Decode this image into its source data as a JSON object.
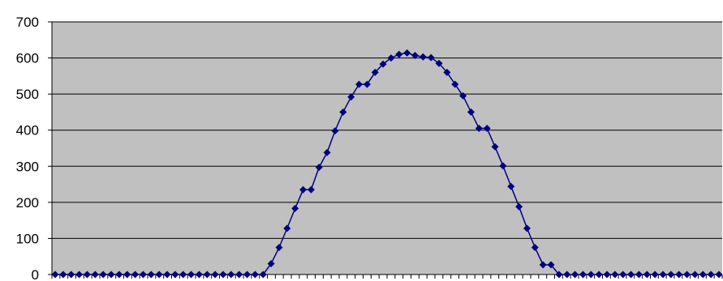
{
  "chart_data": {
    "type": "line",
    "title": "",
    "xlabel": "",
    "ylabel": "",
    "ylim": [
      0,
      700
    ],
    "yticks": [
      "0",
      "100",
      "200",
      "300",
      "400",
      "500",
      "600",
      "700"
    ],
    "grid": true,
    "legend": "none",
    "colors": {
      "plot_bg": "#c0c0c0",
      "series": "#000080",
      "grid": "#000000"
    },
    "series": [
      {
        "marker": "diamond",
        "values": [
          0,
          0,
          0,
          0,
          0,
          0,
          0,
          0,
          0,
          0,
          0,
          0,
          0,
          0,
          0,
          0,
          0,
          0,
          0,
          0,
          0,
          0,
          0,
          0,
          0,
          0,
          0,
          30,
          75,
          128,
          183,
          235,
          235,
          297,
          338,
          398,
          450,
          492,
          527,
          527,
          560,
          583,
          600,
          610,
          614,
          607,
          603,
          601,
          585,
          560,
          527,
          495,
          450,
          405,
          405,
          354,
          301,
          244,
          188,
          128,
          75,
          27,
          27,
          0,
          0,
          0,
          0,
          0,
          0,
          0,
          0,
          0,
          0,
          0,
          0,
          0,
          0,
          0,
          0,
          0,
          0,
          0,
          0,
          0
        ]
      }
    ]
  }
}
